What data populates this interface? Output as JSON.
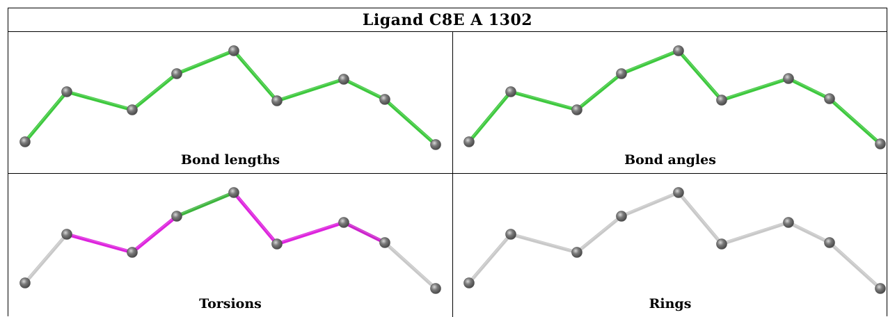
{
  "title": "Ligand C8E A 1302",
  "panels": [
    {
      "caption": "Bond lengths",
      "bond_colors": [
        "#3cc83c",
        "#3cc83c",
        "#3cc83c",
        "#3cc83c",
        "#3cc83c",
        "#3cc83c",
        "#3cc83c",
        "#3cc83c",
        "#3cc83c"
      ]
    },
    {
      "caption": "Bond angles",
      "bond_colors": [
        "#3cc83c",
        "#3cc83c",
        "#3cc83c",
        "#3cc83c",
        "#3cc83c",
        "#3cc83c",
        "#3cc83c",
        "#3cc83c",
        "#3cc83c"
      ]
    },
    {
      "caption": "Torsions",
      "bond_colors": [
        "#c8c8c8",
        "#dd22dd",
        "#dd22dd",
        "#3cb43c",
        "#dd22dd",
        "#dd22dd",
        "#cc22cc",
        "#c8c8c8",
        "#c8c8c8"
      ]
    },
    {
      "caption": "Rings",
      "bond_colors": [
        "#c8c8c8",
        "#c8c8c8",
        "#c8c8c8",
        "#c8c8c8",
        "#c8c8c8",
        "#c8c8c8",
        "#c8c8c8",
        "#c8c8c8",
        "#c8c8c8"
      ]
    }
  ],
  "atom_color": "#7a7a7a"
}
